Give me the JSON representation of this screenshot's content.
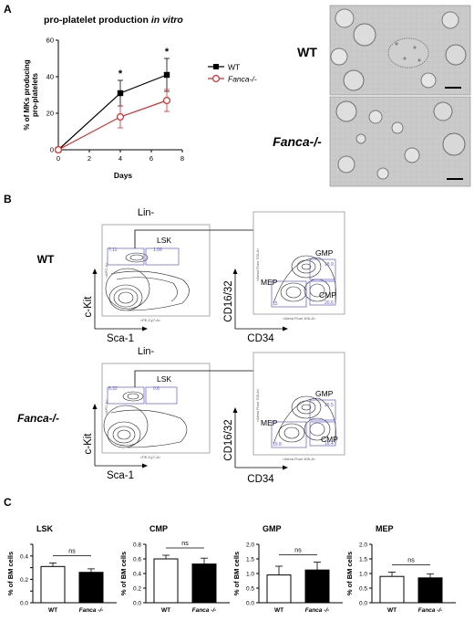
{
  "panelA": {
    "letter": "A",
    "title_prefix": "pro-platelet production ",
    "title_italic": "in vitro",
    "ylabel_line1": "% of MKs producing",
    "ylabel_line2": "pro-platelets",
    "xlabel": "Days",
    "legend": [
      "WT",
      "Fanca-/-"
    ],
    "asterisk": "*",
    "image_labels": [
      "WT",
      "Fanca-/-"
    ]
  },
  "panelB": {
    "letter": "B",
    "rows": [
      {
        "genotype": "WT",
        "lin_label": "Lin-",
        "lsk_label": "LSK",
        "lsk_gate_value": "1.06",
        "left_gate_value": "7.11",
        "gmp_label": "GMP",
        "gmp_value": "18.9",
        "cmp_label": "CMP",
        "cmp_value": "20.6",
        "mep_label": "MEP",
        "mep_value": "15",
        "xaxis_left": "Sca-1",
        "yaxis_left": "c-Kit",
        "xaxis_right": "CD34",
        "yaxis_right": "CD16/32",
        "micro_x_left": "<PE-Cy7-A>",
        "micro_y_left": "<APC-A>",
        "micro_x_right": "<Alexa Fluor 405-A>",
        "micro_y_right": "<Alexa Fluor 700-A>"
      },
      {
        "genotype": "Fanca-/-",
        "lin_label": "Lin-",
        "lsk_label": "LSK",
        "lsk_gate_value": "0.6",
        "left_gate_value": "8.32",
        "gmp_label": "GMP",
        "gmp_value": "15.5",
        "cmp_label": "CMP",
        "cmp_value": "18.4",
        "mep_label": "MEP",
        "mep_value": "19.8",
        "xaxis_left": "Sca-1",
        "yaxis_left": "c-Kit",
        "xaxis_right": "CD34",
        "yaxis_right": "CD16/32",
        "micro_x_left": "<PE-Cy7-A>",
        "micro_y_left": "<APC-A>",
        "micro_x_right": "<Alexa Fluor 405-A>",
        "micro_y_right": "<Alexa Fluor 700-A>"
      }
    ]
  },
  "panelC": {
    "letter": "C",
    "ylabel": "% of BM cells",
    "ns_label": "ns",
    "xcats": [
      "WT",
      "Fanca -/-"
    ]
  },
  "chart_data": [
    {
      "type": "line",
      "xlabel": "Days",
      "ylabel": "% of MKs producing pro-platelets",
      "xlim": [
        0,
        8
      ],
      "ylim": [
        0,
        60
      ],
      "xticks": [
        0,
        2,
        4,
        6,
        8
      ],
      "yticks": [
        0,
        20,
        40,
        60
      ],
      "series": [
        {
          "name": "WT",
          "x": [
            0,
            4,
            7
          ],
          "y": [
            0,
            31,
            41
          ],
          "err": [
            0,
            7,
            9
          ],
          "color": "#000000",
          "marker": "square"
        },
        {
          "name": "Fanca-/-",
          "x": [
            0,
            4,
            7
          ],
          "y": [
            0,
            18,
            27
          ],
          "err": [
            0,
            6,
            6
          ],
          "color": "#d62a2a",
          "marker": "open-circle"
        }
      ],
      "significance": [
        {
          "x": 4,
          "label": "*"
        },
        {
          "x": 7,
          "label": "*"
        }
      ]
    },
    {
      "type": "bar",
      "title": "LSK",
      "ylabel": "% of BM cells",
      "categories": [
        "WT",
        "Fanca -/-"
      ],
      "values": [
        0.31,
        0.26
      ],
      "err": [
        0.03,
        0.03
      ],
      "ylim": [
        0,
        0.5
      ],
      "yticks": [
        0.0,
        0.1,
        0.2,
        0.3,
        0.4,
        0.5
      ],
      "yticklabels": [
        "0.0",
        "",
        "0.2",
        "",
        "0.4",
        ""
      ],
      "fills": [
        "#ffffff",
        "#000000"
      ],
      "annotation": "ns"
    },
    {
      "type": "bar",
      "title": "CMP",
      "ylabel": "% of BM cells",
      "categories": [
        "WT",
        "Fanca -/-"
      ],
      "values": [
        0.6,
        0.53
      ],
      "err": [
        0.05,
        0.08
      ],
      "ylim": [
        0,
        0.8
      ],
      "yticks": [
        0.0,
        0.2,
        0.4,
        0.6,
        0.8
      ],
      "yticklabels": [
        "0.0",
        "0.2",
        "0.4",
        "0.6",
        "0.8"
      ],
      "fills": [
        "#ffffff",
        "#000000"
      ],
      "annotation": "ns"
    },
    {
      "type": "bar",
      "title": "GMP",
      "ylabel": "% of BM cells",
      "categories": [
        "WT",
        "Fanca -/-"
      ],
      "values": [
        0.95,
        1.12
      ],
      "err": [
        0.3,
        0.27
      ],
      "ylim": [
        0,
        2.0
      ],
      "yticks": [
        0.0,
        0.5,
        1.0,
        1.5,
        2.0
      ],
      "yticklabels": [
        "0.0",
        "0.5",
        "1.0",
        "1.5",
        "2.0"
      ],
      "fills": [
        "#ffffff",
        "#000000"
      ],
      "annotation": "ns"
    },
    {
      "type": "bar",
      "title": "MEP",
      "ylabel": "% of BM cells",
      "categories": [
        "WT",
        "Fanca -/-"
      ],
      "values": [
        0.9,
        0.85
      ],
      "err": [
        0.15,
        0.14
      ],
      "ylim": [
        0,
        2.0
      ],
      "yticks": [
        0.0,
        0.5,
        1.0,
        1.5,
        2.0
      ],
      "yticklabels": [
        "0.0",
        "0.5",
        "1.0",
        "1.5",
        "2.0"
      ],
      "fills": [
        "#ffffff",
        "#000000"
      ],
      "annotation": "ns"
    }
  ]
}
